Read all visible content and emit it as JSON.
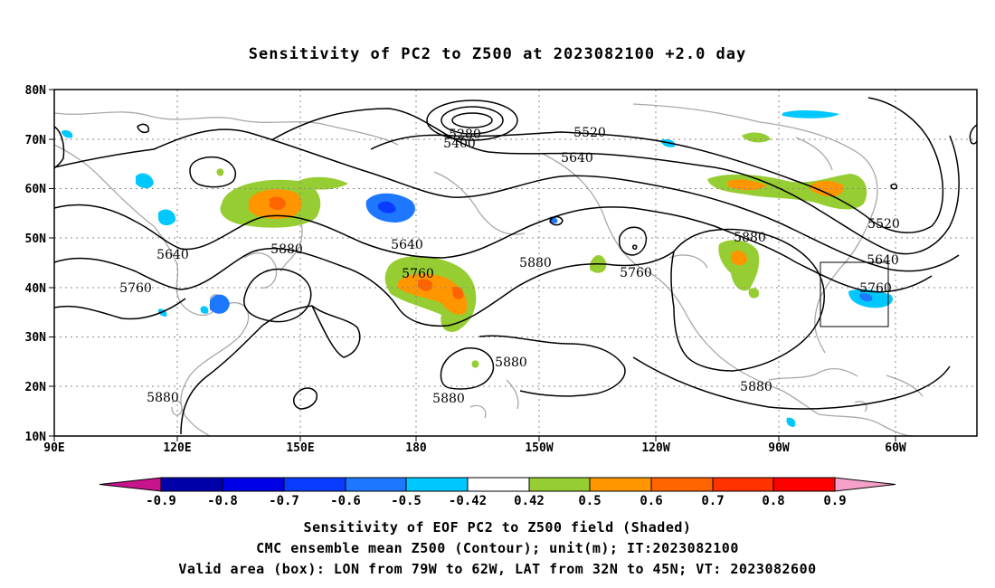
{
  "title": "Sensitivity of PC2 to Z500 at 2023082100 +2.0 day",
  "lat_labels": [
    "80N",
    "70N",
    "60N",
    "50N",
    "40N",
    "30N",
    "20N",
    "10N"
  ],
  "lon_labels": [
    "90E",
    "120E",
    "150E",
    "180",
    "150W",
    "120W",
    "90W",
    "60W"
  ],
  "contour_labels": [
    {
      "text": "5280"
    },
    {
      "text": "5400"
    },
    {
      "text": "5520"
    },
    {
      "text": "5640"
    },
    {
      "text": "5640"
    },
    {
      "text": "5640"
    },
    {
      "text": "5640"
    },
    {
      "text": "5760"
    },
    {
      "text": "5760"
    },
    {
      "text": "5760"
    },
    {
      "text": "5760"
    },
    {
      "text": "5880"
    },
    {
      "text": "5880"
    },
    {
      "text": "5880"
    },
    {
      "text": "5880"
    },
    {
      "text": "5880"
    },
    {
      "text": "5880"
    },
    {
      "text": "5880"
    },
    {
      "text": "5520"
    },
    {
      "text": "5880"
    }
  ],
  "colorbar": {
    "labels": [
      "-0.9",
      "-0.8",
      "-0.7",
      "-0.6",
      "-0.5",
      "-0.42",
      "0.42",
      "0.5",
      "0.6",
      "0.7",
      "0.8",
      "0.9"
    ],
    "colors": [
      "#0000a8",
      "#0000e6",
      "#0a3cff",
      "#1e78ff",
      "#00c8ff",
      "#ffffff",
      "#96cd32",
      "#ff9600",
      "#ff6400",
      "#ff3200",
      "#ff0000"
    ],
    "low_end_color": "#c8148c",
    "high_end_color": "#f5a0c8"
  },
  "footer": {
    "line1": "Sensitivity of EOF PC2 to Z500 field (Shaded)",
    "line2": "CMC ensemble mean Z500 (Contour); unit(m); IT:2023082100",
    "line3": "Valid area (box): LON from 79W to 62W, LAT from 32N to 45N; VT: 2023082600"
  }
}
